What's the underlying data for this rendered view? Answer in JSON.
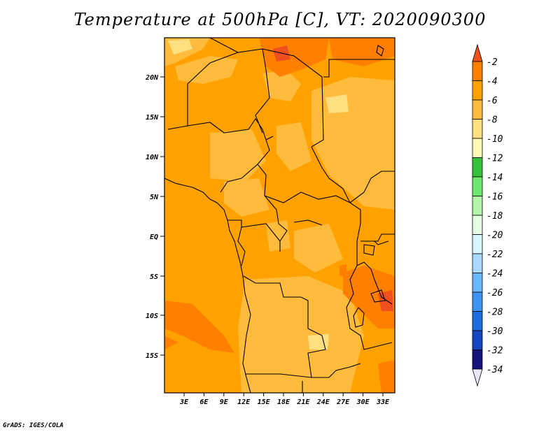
{
  "title": "Temperature at 500hPa [C], VT: 2020090300",
  "footer": "GrADS: IGES/COLA",
  "map": {
    "lat_labels": [
      "20N",
      "15N",
      "10N",
      "5N",
      "EQ",
      "5S",
      "10S",
      "15S"
    ],
    "lon_labels": [
      "3E",
      "6E",
      "9E",
      "12E",
      "15E",
      "18E",
      "21E",
      "24E",
      "27E",
      "30E",
      "33E"
    ]
  },
  "colorbar": {
    "top_color": "#f04f1e",
    "bottom_color": "#e6e6f8",
    "levels": [
      {
        "label": "-2",
        "color": "#f04f1e"
      },
      {
        "label": "-4",
        "color": "#ff7f00"
      },
      {
        "label": "-6",
        "color": "#ffa200"
      },
      {
        "label": "-8",
        "color": "#ffbb3c"
      },
      {
        "label": "-10",
        "color": "#ffe080"
      },
      {
        "label": "-12",
        "color": "#fff8b4"
      },
      {
        "label": "-14",
        "color": "#34c23c"
      },
      {
        "label": "-16",
        "color": "#6ee86e"
      },
      {
        "label": "-18",
        "color": "#b2f6a8"
      },
      {
        "label": "-20",
        "color": "#e4fee4"
      },
      {
        "label": "-22",
        "color": "#d8f6ff"
      },
      {
        "label": "-24",
        "color": "#a8daff"
      },
      {
        "label": "-26",
        "color": "#6cb8ff"
      },
      {
        "label": "-28",
        "color": "#3c94f4"
      },
      {
        "label": "-30",
        "color": "#1e6ee0"
      },
      {
        "label": "-32",
        "color": "#1446c0"
      },
      {
        "label": "-34",
        "color": "#14147c"
      }
    ]
  }
}
